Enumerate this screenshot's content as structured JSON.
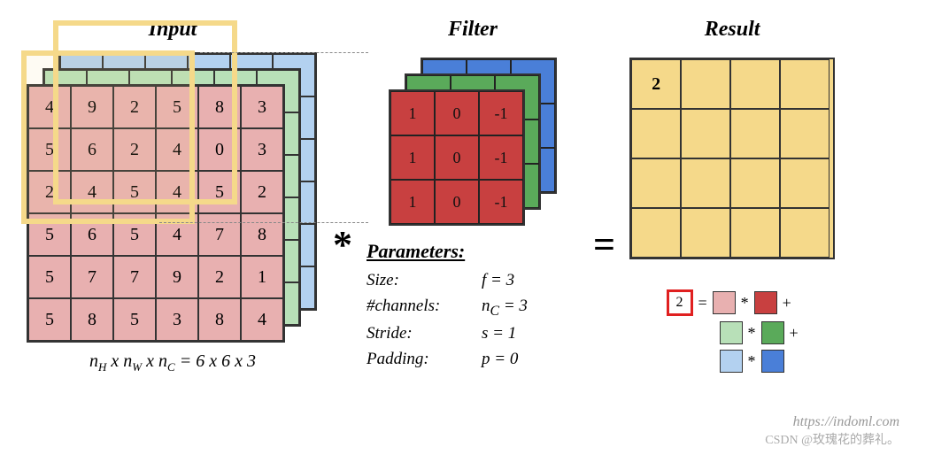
{
  "titles": {
    "input": "Input",
    "filter": "Filter",
    "result": "Result"
  },
  "operators": {
    "conv": "*",
    "eq": "="
  },
  "input": {
    "rows": 6,
    "cols": 6,
    "front_color": "#e8b0b0",
    "mid_color": "#b8e0b8",
    "back_color": "#b3d1f0",
    "values": [
      [
        4,
        9,
        2,
        5,
        8,
        3
      ],
      [
        5,
        6,
        2,
        4,
        0,
        3
      ],
      [
        2,
        4,
        5,
        4,
        5,
        2
      ],
      [
        5,
        6,
        5,
        4,
        7,
        8
      ],
      [
        5,
        7,
        7,
        9,
        2,
        1
      ],
      [
        5,
        8,
        5,
        3,
        8,
        4
      ]
    ],
    "highlight_size": 3,
    "caption_prefix": "n",
    "caption_dims": [
      "H",
      "W",
      "C"
    ],
    "caption_value": "6 x 6 x 3"
  },
  "filter": {
    "rows": 3,
    "cols": 3,
    "front_color": "#c84040",
    "mid_color": "#5aaa5a",
    "back_color": "#4a7fd8",
    "values": [
      [
        1,
        0,
        -1
      ],
      [
        1,
        0,
        -1
      ],
      [
        1,
        0,
        -1
      ]
    ]
  },
  "parameters": {
    "heading": "Parameters:",
    "rows": [
      {
        "label": "Size:",
        "value": "f = 3"
      },
      {
        "label": "#channels:",
        "value_html": "n<sub>C</sub> = 3"
      },
      {
        "label": "Stride:",
        "value": "s = 1"
      },
      {
        "label": "Padding:",
        "value": "p = 0"
      }
    ]
  },
  "result": {
    "rows": 4,
    "cols": 4,
    "fill_color": "#f5d98a",
    "highlight_border": "#e02020",
    "highlight_cell": {
      "r": 0,
      "c": 0,
      "value": 2
    }
  },
  "legend": {
    "result_value": 2,
    "eq": "=",
    "times": "*",
    "plus": "+",
    "pairs": [
      {
        "a": "#e8b0b0",
        "b": "#c84040",
        "trail": "+"
      },
      {
        "a": "#b8e0b8",
        "b": "#5aaa5a",
        "trail": "+"
      },
      {
        "a": "#b3d1f0",
        "b": "#4a7fd8",
        "trail": ""
      }
    ]
  },
  "watermark_url": "https://indoml.com",
  "watermark_text": "CSDN @玫瑰花的葬礼。",
  "style": {
    "cell_size_input": 48,
    "cell_size_filter": 50,
    "cell_size_result": 56,
    "offset_step": 18,
    "border_color": "#333333",
    "font_family": "Georgia, serif",
    "title_fontsize": 24,
    "cell_fontsize": 20
  }
}
